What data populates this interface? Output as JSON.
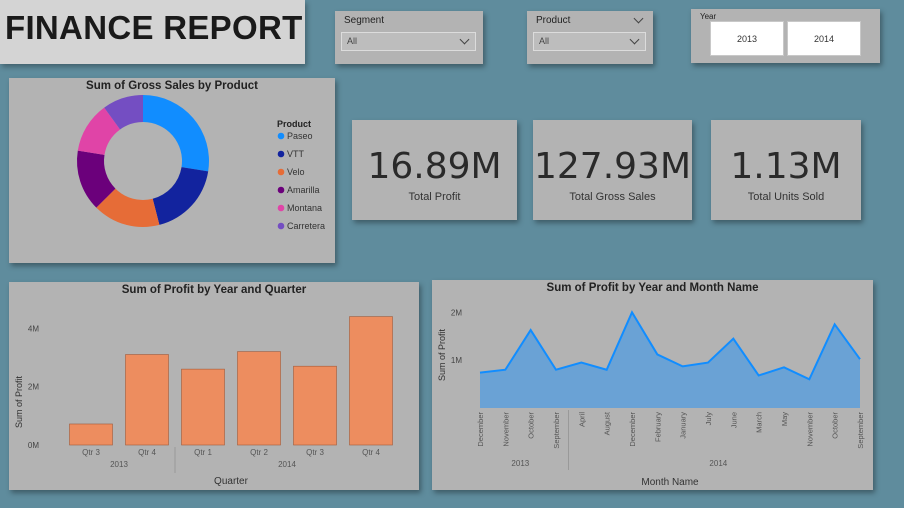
{
  "header": {
    "title": "FINANCE REPORT"
  },
  "slicers": {
    "segment": {
      "label": "Segment",
      "value": "All"
    },
    "product": {
      "label": "Product",
      "value": "All"
    },
    "year": {
      "label": "Year",
      "options": [
        "2013",
        "2014"
      ]
    }
  },
  "kpis": [
    {
      "value": "16.89M",
      "label": "Total Profit"
    },
    {
      "value": "127.93M",
      "label": "Total Gross Sales"
    },
    {
      "value": "1.13M",
      "label": "Total Units Sold"
    }
  ],
  "chart_data": [
    {
      "type": "pie",
      "title": "Sum of Gross Sales by Product",
      "legend_title": "Product",
      "legend_position": "right",
      "categories": [
        "Paseo",
        "VTT",
        "Velo",
        "Amarilla",
        "Montana",
        "Carretera"
      ],
      "values": [
        27.5,
        18.5,
        16.5,
        15.0,
        12.5,
        10.0
      ],
      "colors": [
        "#118dff",
        "#12239e",
        "#e66c37",
        "#6b007b",
        "#e044a7",
        "#744ec2"
      ]
    },
    {
      "type": "bar",
      "title": "Sum of Profit by Year and Quarter",
      "xlabel": "Quarter",
      "ylabel": "Sum of Profit",
      "yticks": [
        "0M",
        "2M",
        "4M"
      ],
      "ylim": [
        0,
        4.9
      ],
      "categories": [
        "Qtr 3",
        "Qtr 4",
        "Qtr 1",
        "Qtr 2",
        "Qtr 3",
        "Qtr 4"
      ],
      "groups": [
        {
          "label": "2013",
          "count": 2
        },
        {
          "label": "2014",
          "count": 4
        }
      ],
      "values": [
        0.72,
        3.1,
        2.6,
        3.2,
        2.7,
        4.4
      ],
      "color": "#ed8d5f"
    },
    {
      "type": "area",
      "title": "Sum of Profit by Year and Month Name",
      "xlabel": "Month Name",
      "ylabel": "Sum of Profit",
      "yticks": [
        "1M",
        "2M"
      ],
      "ylim": [
        0,
        2.3
      ],
      "categories": [
        "December",
        "November",
        "October",
        "September",
        "April",
        "August",
        "December",
        "February",
        "January",
        "July",
        "June",
        "March",
        "May",
        "November",
        "October",
        "September"
      ],
      "groups": [
        {
          "label": "2013",
          "count": 4
        },
        {
          "label": "2014",
          "count": 12
        }
      ],
      "values": [
        0.74,
        0.8,
        1.63,
        0.8,
        0.95,
        0.8,
        2.0,
        1.12,
        0.87,
        0.95,
        1.45,
        0.68,
        0.85,
        0.6,
        1.75,
        1.02
      ],
      "color": "#118dff"
    }
  ]
}
